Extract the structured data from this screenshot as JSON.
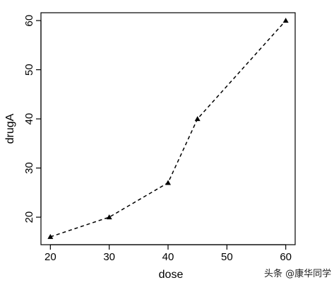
{
  "chart_data": {
    "type": "line",
    "line_style": "dashed",
    "marker": "filled-triangle",
    "x": [
      20,
      30,
      40,
      45,
      60
    ],
    "series": [
      {
        "values": [
          16,
          20,
          27,
          40,
          60
        ]
      }
    ],
    "xlabel": "dose",
    "ylabel": "drugA",
    "xlim": [
      18.4,
      61.6
    ],
    "ylim": [
      14.4,
      61.6
    ],
    "xticks": [
      20,
      30,
      40,
      50,
      60
    ],
    "yticks": [
      20,
      30,
      40,
      50,
      60
    ],
    "grid": false,
    "colors": {
      "line": "#000000",
      "marker": "#000000"
    }
  },
  "watermark": "头条 @康华同学"
}
